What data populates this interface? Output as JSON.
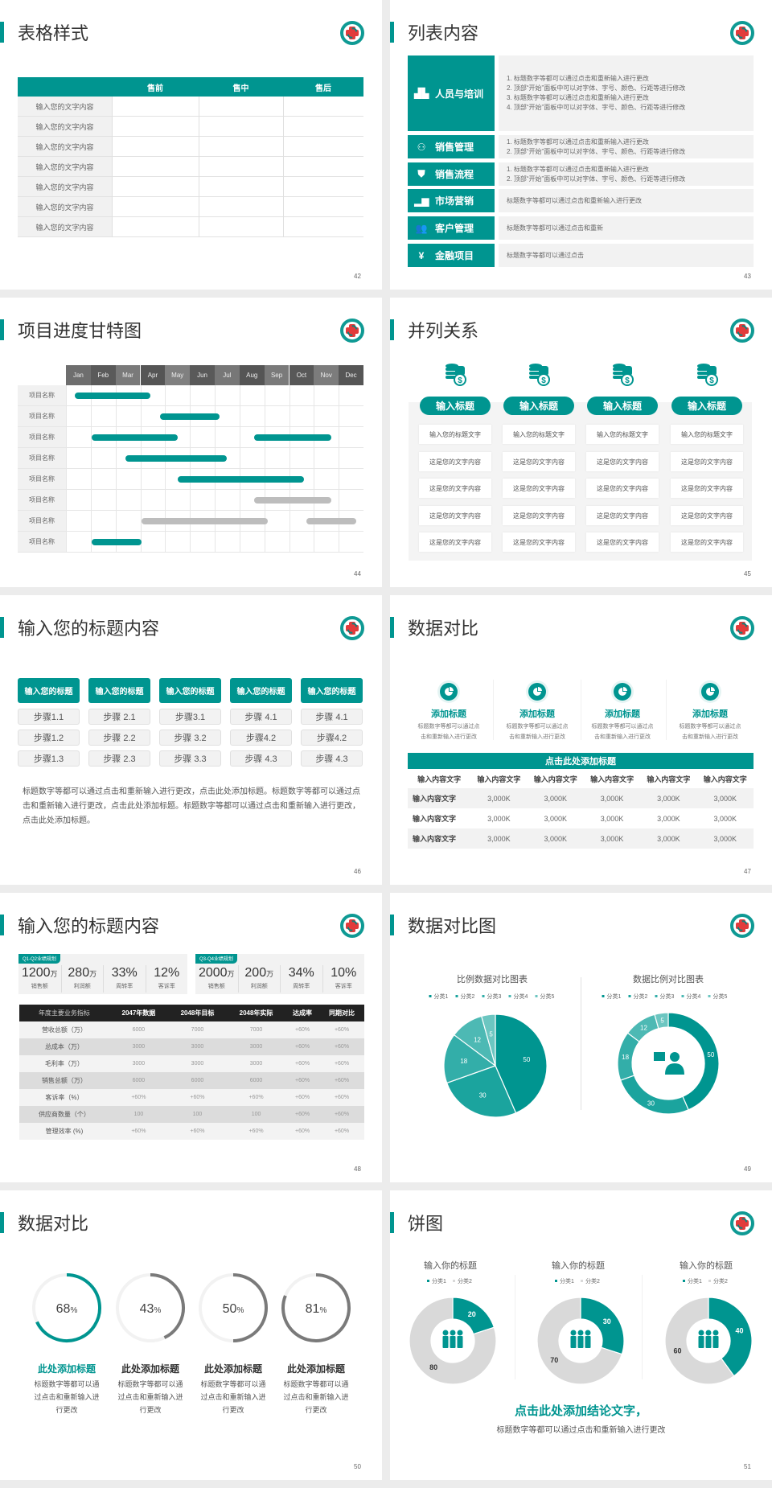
{
  "colors": {
    "accent": "#009590",
    "gray_bar": "#bdbdbd",
    "gray_ring": "#7a7a7a"
  },
  "logo_icon": "hospital-cross-logo",
  "s42": {
    "title": "表格样式",
    "page": "42",
    "headers": [
      "",
      "售前",
      "售中",
      "售后"
    ],
    "rows": [
      "输入您的文字内容",
      "输入您的文字内容",
      "输入您的文字内容",
      "输入您的文字内容",
      "输入您的文字内容",
      "输入您的文字内容",
      "输入您的文字内容"
    ]
  },
  "s43": {
    "title": "列表内容",
    "page": "43",
    "items": [
      {
        "label": "人员与培训",
        "icon": "people-training-icon",
        "lines": [
          "1.  标题数字等都可以通过点击和重新输入进行更改",
          "2.  顶部“开始”面板中可以对字体、字号、颜色、行距等进行修改",
          "3.  标题数字等都可以通过点击和重新输入进行更改",
          "4.  顶部“开始”面板中可以对字体、字号、颜色、行距等进行修改"
        ]
      },
      {
        "label": "销售管理",
        "icon": "user-gear-icon",
        "lines": [
          "1.  标题数字等都可以通过点击和重新输入进行更改",
          "2.  顶部“开始”面板中可以对字体、字号、颜色、行距等进行修改"
        ]
      },
      {
        "label": "销售流程",
        "icon": "shield-icon",
        "lines": [
          "1.  标题数字等都可以通过点击和重新输入进行更改",
          "2.  顶部“开始”面板中可以对字体、字号、颜色、行距等进行修改"
        ]
      },
      {
        "label": "市场营销",
        "icon": "bar-chart-icon",
        "lines": [
          "标题数字等都可以通过点击和重新输入进行更改"
        ]
      },
      {
        "label": "客户管理",
        "icon": "group-icon",
        "lines": [
          "标题数字等都可以通过点击和重新"
        ]
      },
      {
        "label": "金融项目",
        "icon": "money-hand-icon",
        "lines": [
          "标题数字等都可以通过点击"
        ]
      }
    ]
  },
  "s44": {
    "title": "项目进度甘特图",
    "page": "44",
    "months": [
      "Jan",
      "Feb",
      "Mar",
      "Apr",
      "May",
      "Jun",
      "Jul",
      "Aug",
      "Sep",
      "Oct",
      "Nov",
      "Dec"
    ],
    "tasks": [
      {
        "name": "项目名称",
        "bars": [
          {
            "start": 0.35,
            "end": 3.4,
            "status": "active"
          }
        ]
      },
      {
        "name": "项目名称",
        "bars": [
          {
            "start": 3.8,
            "end": 6.2,
            "status": "active"
          }
        ]
      },
      {
        "name": "项目名称",
        "bars": [
          {
            "start": 1.05,
            "end": 4.5,
            "status": "active"
          },
          {
            "start": 7.6,
            "end": 10.7,
            "status": "active"
          }
        ]
      },
      {
        "name": "项目名称",
        "bars": [
          {
            "start": 2.4,
            "end": 6.5,
            "status": "active"
          }
        ]
      },
      {
        "name": "项目名称",
        "bars": [
          {
            "start": 4.5,
            "end": 9.6,
            "status": "active"
          }
        ]
      },
      {
        "name": "项目名称",
        "bars": [
          {
            "start": 7.6,
            "end": 10.7,
            "status": "planned"
          }
        ]
      },
      {
        "name": "项目名称",
        "bars": [
          {
            "start": 3.05,
            "end": 8.15,
            "status": "planned"
          },
          {
            "start": 9.7,
            "end": 11.7,
            "status": "planned"
          }
        ]
      },
      {
        "name": "项目名称",
        "bars": [
          {
            "start": 1.05,
            "end": 3.05,
            "status": "active"
          }
        ]
      }
    ]
  },
  "s45": {
    "title": "并列关系",
    "page": "45",
    "columns": [
      {
        "heading": "输入标题",
        "cells": [
          "输入您的标题文字",
          "这是您的文字内容",
          "这是您的文字内容",
          "这是您的文字内容",
          "这是您的文字内容"
        ]
      },
      {
        "heading": "输入标题",
        "cells": [
          "输入您的标题文字",
          "这是您的文字内容",
          "这是您的文字内容",
          "这是您的文字内容",
          "这是您的文字内容"
        ]
      },
      {
        "heading": "输入标题",
        "cells": [
          "输入您的标题文字",
          "这是您的文字内容",
          "这是您的文字内容",
          "这是您的文字内容",
          "这是您的文字内容"
        ]
      },
      {
        "heading": "输入标题",
        "cells": [
          "输入您的标题文字",
          "这是您的文字内容",
          "这是您的文字内容",
          "这是您的文字内容",
          "这是您的文字内容"
        ]
      }
    ]
  },
  "s46": {
    "title": "输入您的标题内容",
    "page": "46",
    "columns": [
      {
        "heading": "输入您的标题",
        "steps": [
          "步骤1.1",
          "步骤1.2",
          "步骤1.3"
        ]
      },
      {
        "heading": "输入您的标题",
        "steps": [
          "步骤 2.1",
          "步骤 2.2",
          "步骤 2.3"
        ]
      },
      {
        "heading": "输入您的标题",
        "steps": [
          "步骤3.1",
          "步骤 3.2",
          "步骤 3.3"
        ]
      },
      {
        "heading": "输入您的标题",
        "steps": [
          "步骤 4.1",
          "步骤4.2",
          "步骤 4.3"
        ]
      },
      {
        "heading": "输入您的标题",
        "steps": [
          "步骤 4.1",
          "步骤4.2",
          "步骤 4.3"
        ]
      }
    ],
    "paragraph": "标题数字等都可以通过点击和重新输入进行更改，点击此处添加标题。标题数字等都可以通过点击和重新输入进行更改，点击此处添加标题。标题数字等都可以通过点击和重新输入进行更改，点击此处添加标题。"
  },
  "s47": {
    "title": "数据对比",
    "page": "47",
    "features": [
      {
        "title": "添加标题",
        "desc1": "标题数字等都可以通过点",
        "desc2": "击和重新输入进行更改"
      },
      {
        "title": "添加标题",
        "desc1": "标题数字等都可以通过点",
        "desc2": "击和重新输入进行更改"
      },
      {
        "title": "添加标题",
        "desc1": "标题数字等都可以通过点",
        "desc2": "击和重新输入进行更改"
      },
      {
        "title": "添加标题",
        "desc1": "标题数字等都可以通过点",
        "desc2": "击和重新输入进行更改"
      }
    ],
    "table_title": "点击此处添加标题",
    "headers": [
      "输入内容文字",
      "输入内容文字",
      "输入内容文字",
      "输入内容文字",
      "输入内容文字",
      "输入内容文字"
    ],
    "rows": [
      [
        "输入内容文字",
        "3,000K",
        "3,000K",
        "3,000K",
        "3,000K",
        "3,000K"
      ],
      [
        "输入内容文字",
        "3,000K",
        "3,000K",
        "3,000K",
        "3,000K",
        "3,000K"
      ],
      [
        "输入内容文字",
        "3,000K",
        "3,000K",
        "3,000K",
        "3,000K",
        "3,000K"
      ]
    ]
  },
  "s48": {
    "title": "输入您的标题内容",
    "page": "48",
    "kpi_groups": [
      {
        "tag": "Q1-Q2业绩规划",
        "items": [
          {
            "value": "1200",
            "unit": "万",
            "label": "销售额"
          },
          {
            "value": "280",
            "unit": "万",
            "label": "利润额"
          },
          {
            "value": "33%",
            "unit": "",
            "label": "周转率"
          },
          {
            "value": "12%",
            "unit": "",
            "label": "客诉率"
          }
        ]
      },
      {
        "tag": "Q3-Q4业绩规划",
        "items": [
          {
            "value": "2000",
            "unit": "万",
            "label": "销售额"
          },
          {
            "value": "200",
            "unit": "万",
            "label": "利润额"
          },
          {
            "value": "34%",
            "unit": "",
            "label": "周转率"
          },
          {
            "value": "10%",
            "unit": "",
            "label": "客诉率"
          }
        ]
      }
    ],
    "headers": [
      "年度主要业务指标",
      "2047年数据",
      "2048年目标",
      "2048年实际",
      "达成率",
      "同期对比"
    ],
    "rows": [
      [
        "营收总额（万）",
        "6000",
        "7000",
        "7000",
        "+60%",
        "+60%"
      ],
      [
        "总成本（万）",
        "3000",
        "3000",
        "3000",
        "+60%",
        "+60%"
      ],
      [
        "毛利率（万）",
        "3000",
        "3000",
        "3000",
        "+60%",
        "+60%"
      ],
      [
        "销售总额（万）",
        "6000",
        "6000",
        "6000",
        "+60%",
        "+60%"
      ],
      [
        "客诉率（%）",
        "+60%",
        "+60%",
        "+60%",
        "+60%",
        "+60%"
      ],
      [
        "供应商数量（个）",
        "100",
        "100",
        "100",
        "+60%",
        "+60%"
      ],
      [
        "管理效率 (%)",
        "+60%",
        "+60%",
        "+60%",
        "+60%",
        "+60%"
      ]
    ]
  },
  "s49": {
    "title": "数据对比图",
    "page": "49"
  },
  "s50": {
    "title": "数据对比",
    "page": "50",
    "items": [
      {
        "percent": 68,
        "value": "68",
        "unit": "%",
        "title": "此处添加标题",
        "lines": [
          "标题数字等都可以通",
          "过点击和重新输入进",
          "行更改"
        ],
        "highlight": true
      },
      {
        "percent": 43,
        "value": "43",
        "unit": "%",
        "title": "此处添加标题",
        "lines": [
          "标题数字等都可以通",
          "过点击和重新输入进",
          "行更改"
        ],
        "highlight": false
      },
      {
        "percent": 50,
        "value": "50",
        "unit": "%",
        "title": "此处添加标题",
        "lines": [
          "标题数字等都可以通",
          "过点击和重新输入进",
          "行更改"
        ],
        "highlight": false
      },
      {
        "percent": 81,
        "value": "81",
        "unit": "%",
        "title": "此处添加标题",
        "lines": [
          "标题数字等都可以通",
          "过点击和重新输入进",
          "行更改"
        ],
        "highlight": false
      }
    ]
  },
  "s51": {
    "title": "饼图",
    "page": "51",
    "conclusion": "点击此处添加结论文字，",
    "sub": "标题数字等都可以通过点击和重新输入进行更改"
  },
  "chart_data": [
    {
      "type": "pie",
      "title": "比例数据对比图表",
      "legend": "top",
      "categories": [
        "分类1",
        "分类2",
        "分类3",
        "分类4",
        "分类5"
      ],
      "values": [
        50,
        30,
        18,
        12,
        5
      ],
      "colors": [
        "#009590",
        "#1ba49e",
        "#33aea9",
        "#4db9b4",
        "#6cc6c1"
      ]
    },
    {
      "type": "pie",
      "variant": "donut",
      "title": "数据比例对比图表",
      "legend": "top",
      "center_icon": "customer-service-icon",
      "categories": [
        "分类1",
        "分类2",
        "分类3",
        "分类4",
        "分类5"
      ],
      "values": [
        50,
        30,
        18,
        12,
        5
      ],
      "colors": [
        "#009590",
        "#1ba49e",
        "#33aea9",
        "#4db9b4",
        "#6cc6c1"
      ]
    },
    {
      "type": "pie",
      "variant": "donut",
      "title": "输入你的标题",
      "legend": "top",
      "center_icon": "team-icon",
      "categories": [
        "分类1",
        "分类2"
      ],
      "values": [
        20,
        80
      ],
      "colors": [
        "#009590",
        "#d9d9d9"
      ]
    },
    {
      "type": "pie",
      "variant": "donut",
      "title": "输入你的标题",
      "legend": "top",
      "center_icon": "team-icon",
      "categories": [
        "分类1",
        "分类2"
      ],
      "values": [
        30,
        70
      ],
      "colors": [
        "#009590",
        "#d9d9d9"
      ]
    },
    {
      "type": "pie",
      "variant": "donut",
      "title": "输入你的标题",
      "legend": "top",
      "center_icon": "team-icon",
      "categories": [
        "分类1",
        "分类2"
      ],
      "values": [
        40,
        60
      ],
      "colors": [
        "#009590",
        "#d9d9d9"
      ]
    }
  ]
}
